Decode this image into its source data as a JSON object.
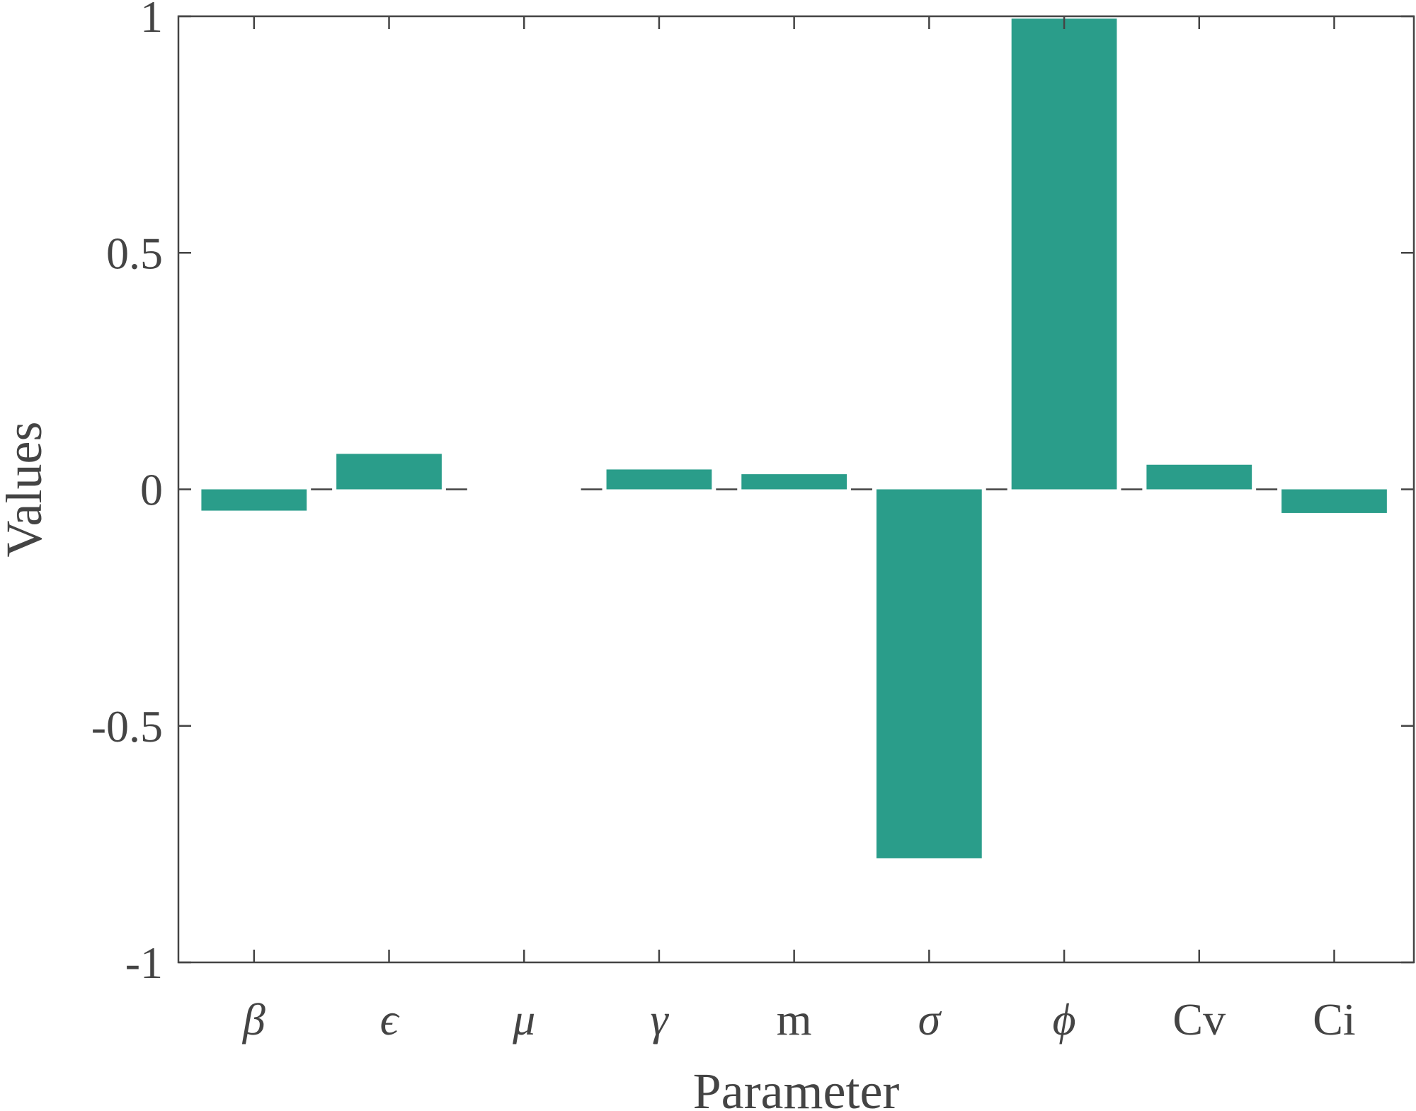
{
  "chart_data": {
    "type": "bar",
    "title": "",
    "xlabel": "Parameter",
    "ylabel": "Values",
    "categories": [
      "β",
      "ϵ",
      "μ",
      "γ",
      "m",
      "σ",
      "ϕ",
      "Cv",
      "Ci"
    ],
    "values": [
      -0.045,
      0.075,
      0.0,
      0.042,
      0.032,
      -0.78,
      0.995,
      0.052,
      -0.05
    ],
    "ylim": [
      -1,
      1
    ],
    "yticks": [
      {
        "value": -1,
        "label": "-1"
      },
      {
        "value": -0.5,
        "label": "-0.5"
      },
      {
        "value": 0,
        "label": "0"
      },
      {
        "value": 0.5,
        "label": "0.5"
      },
      {
        "value": 1,
        "label": "1"
      }
    ],
    "grid": false,
    "bar_color": "#2a9d8a",
    "axis_color": "#444444"
  }
}
